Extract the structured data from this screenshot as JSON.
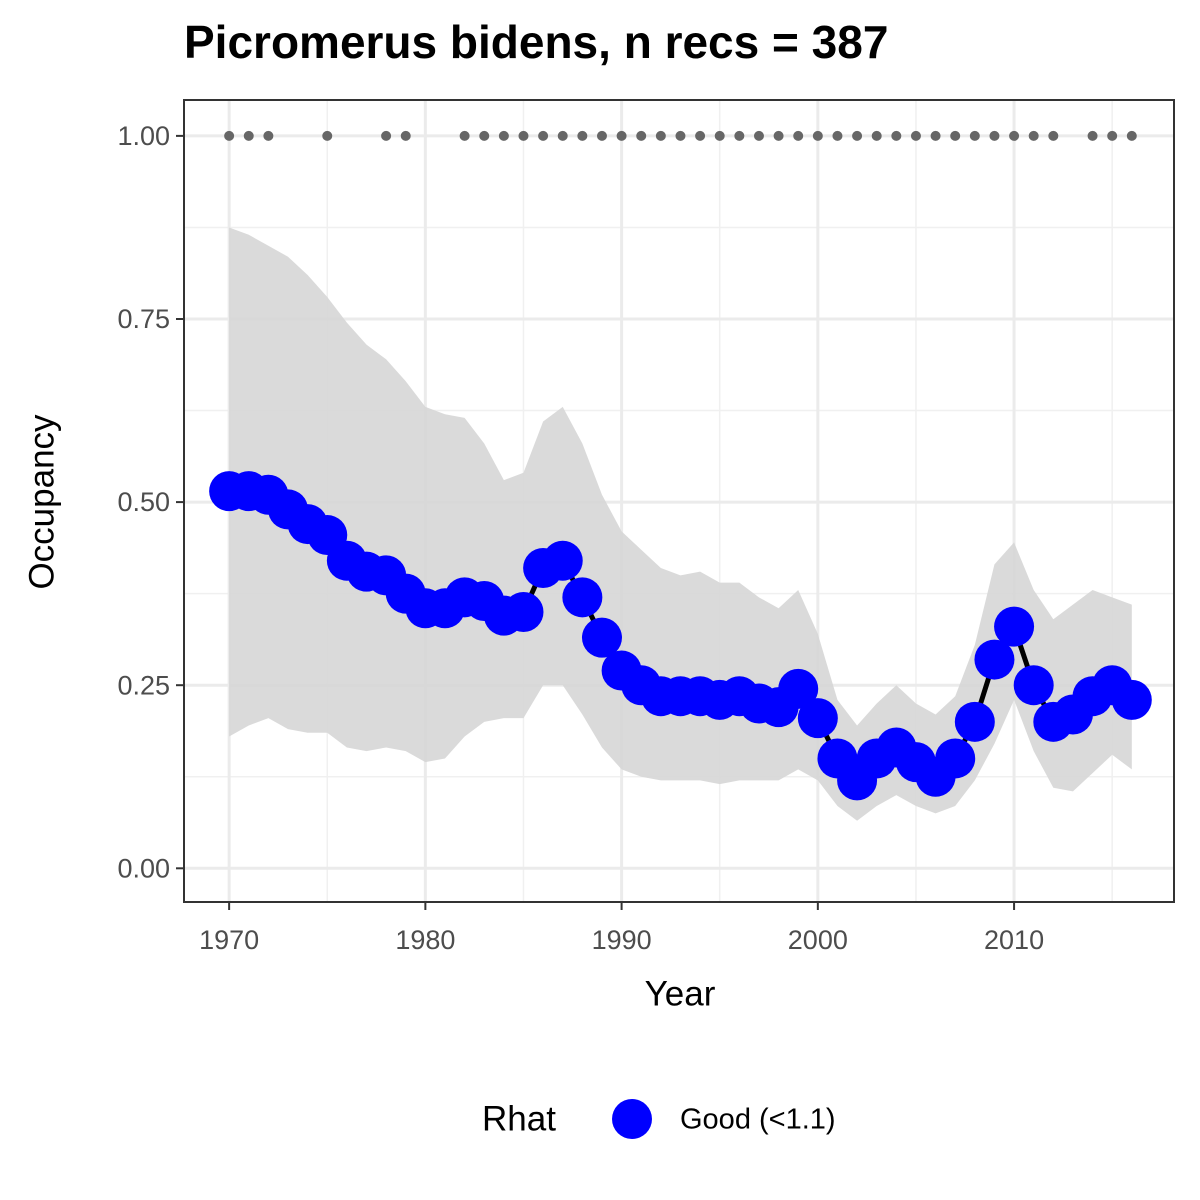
{
  "chart_data": {
    "type": "line",
    "title": "Picromerus bidens, n recs = 387",
    "x_label": "Year",
    "y_label": "Occupancy",
    "x": [
      1970,
      1971,
      1972,
      1973,
      1974,
      1975,
      1976,
      1977,
      1978,
      1979,
      1980,
      1981,
      1982,
      1983,
      1984,
      1985,
      1986,
      1987,
      1988,
      1989,
      1990,
      1991,
      1992,
      1993,
      1994,
      1995,
      1996,
      1997,
      1998,
      1999,
      2000,
      2001,
      2002,
      2003,
      2004,
      2005,
      2006,
      2007,
      2008,
      2009,
      2010,
      2011,
      2012,
      2013,
      2014,
      2015,
      2016
    ],
    "series": [
      {
        "name": "Good (<1.1)",
        "color": "#0000ff",
        "line_color": "#000000",
        "values": [
          0.515,
          0.515,
          0.51,
          0.49,
          0.47,
          0.455,
          0.42,
          0.405,
          0.4,
          0.375,
          0.355,
          0.355,
          0.37,
          0.365,
          0.345,
          0.35,
          0.41,
          0.42,
          0.37,
          0.315,
          0.27,
          0.25,
          0.235,
          0.235,
          0.235,
          0.23,
          0.235,
          0.225,
          0.22,
          0.245,
          0.205,
          0.15,
          0.12,
          0.15,
          0.165,
          0.145,
          0.125,
          0.15,
          0.2,
          0.285,
          0.33,
          0.25,
          0.2,
          0.21,
          0.235,
          0.25,
          0.23
        ]
      }
    ],
    "ribbon": {
      "color": "#d6d6d6",
      "upper": [
        0.875,
        0.865,
        0.85,
        0.835,
        0.81,
        0.78,
        0.745,
        0.715,
        0.695,
        0.665,
        0.63,
        0.62,
        0.615,
        0.58,
        0.53,
        0.54,
        0.61,
        0.63,
        0.58,
        0.51,
        0.46,
        0.435,
        0.41,
        0.4,
        0.405,
        0.39,
        0.39,
        0.37,
        0.355,
        0.38,
        0.32,
        0.23,
        0.195,
        0.225,
        0.25,
        0.225,
        0.21,
        0.235,
        0.305,
        0.415,
        0.445,
        0.38,
        0.34,
        0.36,
        0.38,
        0.37,
        0.36
      ],
      "lower": [
        0.18,
        0.195,
        0.205,
        0.19,
        0.185,
        0.185,
        0.165,
        0.16,
        0.165,
        0.16,
        0.145,
        0.15,
        0.18,
        0.2,
        0.205,
        0.205,
        0.25,
        0.25,
        0.21,
        0.165,
        0.135,
        0.125,
        0.12,
        0.12,
        0.12,
        0.115,
        0.12,
        0.12,
        0.12,
        0.135,
        0.12,
        0.085,
        0.065,
        0.085,
        0.1,
        0.085,
        0.075,
        0.085,
        0.12,
        0.17,
        0.23,
        0.16,
        0.11,
        0.105,
        0.13,
        0.155,
        0.135
      ]
    },
    "records": {
      "color": "#666666",
      "x": [
        1970,
        1971,
        1972,
        1975,
        1978,
        1979,
        1982,
        1983,
        1984,
        1985,
        1986,
        1987,
        1988,
        1989,
        1990,
        1991,
        1992,
        1993,
        1994,
        1995,
        1996,
        1997,
        1998,
        1999,
        2000,
        2001,
        2002,
        2003,
        2004,
        2005,
        2006,
        2007,
        2008,
        2009,
        2010,
        2011,
        2012,
        2014,
        2015,
        2016
      ],
      "values": [
        1,
        1,
        1,
        1,
        1,
        1,
        1,
        1,
        1,
        1,
        1,
        1,
        1,
        1,
        1,
        1,
        1,
        1,
        1,
        1,
        1,
        1,
        1,
        1,
        1,
        1,
        1,
        1,
        1,
        1,
        1,
        1,
        1,
        1,
        1,
        1,
        1,
        1,
        1,
        1
      ]
    },
    "xlim": [
      1967.7,
      2018.15
    ],
    "ylim": [
      -0.046,
      1.049
    ],
    "xticks": [
      1970,
      1980,
      1990,
      2000,
      2010
    ],
    "yticks": [
      {
        "value": 0,
        "label": "0.00"
      },
      {
        "value": 0.25,
        "label": "0.25"
      },
      {
        "value": 0.5,
        "label": "0.50"
      },
      {
        "value": 0.75,
        "label": "0.75"
      },
      {
        "value": 1,
        "label": "1.00"
      }
    ],
    "x_minor_grid": [
      1975,
      1985,
      1995,
      2005,
      2015
    ],
    "y_minor_grid": [
      0.125,
      0.375,
      0.625,
      0.875
    ],
    "grid": true,
    "legend_title": "Rhat",
    "legend_position": "bottom"
  }
}
